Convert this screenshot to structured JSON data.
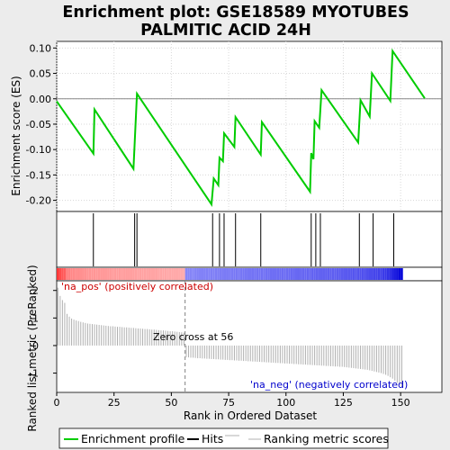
{
  "chart_data": {
    "type": "line",
    "title_lines": [
      "Enrichment plot: GSE18589 MYOTUBES",
      "PALMITIC ACID 24H"
    ],
    "ylabel_top": "Enrichment score (ES)",
    "ylabel_bottom": "Ranked list metric (PreRanked)",
    "xlabel": "Rank in Ordered Dataset",
    "es_yticks": [
      "0.10",
      "0.05",
      "0.00",
      "-0.05",
      "-0.10",
      "-0.15",
      "-0.20"
    ],
    "es_ytick_values": [
      0.1,
      0.05,
      0.0,
      -0.05,
      -0.1,
      -0.15,
      -0.2
    ],
    "metric_yticks": [
      "2",
      "1",
      "0",
      "-1"
    ],
    "metric_ytick_values": [
      2,
      1,
      0,
      -1
    ],
    "xticks": [
      "0",
      "25",
      "50",
      "75",
      "100",
      "125",
      "150"
    ],
    "xtick_values": [
      0,
      25,
      50,
      75,
      100,
      125,
      150
    ],
    "xlim": [
      0,
      168
    ],
    "es_ylim": [
      -0.222,
      0.113
    ],
    "metric_ylim": [
      -1.7,
      2.35
    ],
    "colors": {
      "es_line": "#00cc00",
      "hits": "#000000",
      "metric": "#b0b0b0",
      "pos_label": "#cc0000",
      "neg_label": "#0000cc",
      "zero_line": "#808080"
    },
    "es_curve": [
      [
        0,
        -0.005
      ],
      [
        16,
        -0.108
      ],
      [
        16.5,
        -0.021
      ],
      [
        33.5,
        -0.138
      ],
      [
        35,
        0.01
      ],
      [
        67.5,
        -0.208
      ],
      [
        68.5,
        -0.157
      ],
      [
        70.5,
        -0.17
      ],
      [
        71,
        -0.116
      ],
      [
        72.5,
        -0.123
      ],
      [
        73,
        -0.068
      ],
      [
        77.5,
        -0.095
      ],
      [
        78,
        -0.036
      ],
      [
        89,
        -0.11
      ],
      [
        89.5,
        -0.046
      ],
      [
        110.5,
        -0.183
      ],
      [
        111,
        -0.107
      ],
      [
        112,
        -0.119
      ],
      [
        112.5,
        -0.044
      ],
      [
        114.5,
        -0.057
      ],
      [
        115.5,
        0.017
      ],
      [
        131.5,
        -0.086
      ],
      [
        132.5,
        -0.003
      ],
      [
        136.5,
        -0.035
      ],
      [
        137.5,
        0.05
      ],
      [
        145.5,
        -0.004
      ],
      [
        146.5,
        0.094
      ],
      [
        160.5,
        0.001
      ]
    ],
    "hits": [
      16,
      34,
      35,
      68,
      71,
      73,
      78,
      89,
      111,
      113,
      115,
      132,
      138,
      147
    ],
    "metric": [
      2.1,
      1.8,
      1.65,
      1.55,
      1.15,
      1.05,
      0.98,
      0.94,
      0.91,
      0.89,
      0.86,
      0.84,
      0.82,
      0.8,
      0.79,
      0.78,
      0.77,
      0.76,
      0.75,
      0.74,
      0.73,
      0.72,
      0.71,
      0.7,
      0.7,
      0.69,
      0.68,
      0.68,
      0.67,
      0.66,
      0.66,
      0.65,
      0.64,
      0.64,
      0.63,
      0.62,
      0.62,
      0.61,
      0.6,
      0.6,
      0.59,
      0.58,
      0.58,
      0.57,
      0.56,
      0.55,
      0.55,
      0.54,
      0.53,
      0.52,
      0.52,
      0.51,
      0.5,
      0.49,
      0.48,
      0.47,
      -0.42,
      -0.43,
      -0.44,
      -0.44,
      -0.45,
      -0.46,
      -0.46,
      -0.47,
      -0.47,
      -0.48,
      -0.48,
      -0.49,
      -0.49,
      -0.5,
      -0.5,
      -0.51,
      -0.51,
      -0.52,
      -0.52,
      -0.53,
      -0.53,
      -0.54,
      -0.54,
      -0.55,
      -0.55,
      -0.56,
      -0.56,
      -0.57,
      -0.57,
      -0.58,
      -0.58,
      -0.59,
      -0.59,
      -0.6,
      -0.6,
      -0.61,
      -0.61,
      -0.62,
      -0.62,
      -0.63,
      -0.63,
      -0.64,
      -0.64,
      -0.65,
      -0.65,
      -0.66,
      -0.66,
      -0.67,
      -0.67,
      -0.68,
      -0.68,
      -0.69,
      -0.69,
      -0.7,
      -0.7,
      -0.71,
      -0.71,
      -0.72,
      -0.72,
      -0.73,
      -0.73,
      -0.74,
      -0.74,
      -0.75,
      -0.75,
      -0.76,
      -0.76,
      -0.77,
      -0.77,
      -0.78,
      -0.79,
      -0.8,
      -0.81,
      -0.82,
      -0.83,
      -0.84,
      -0.85,
      -0.86,
      -0.87,
      -0.88,
      -0.9,
      -0.92,
      -0.94,
      -0.96,
      -0.98,
      -1.0,
      -1.03,
      -1.06,
      -1.1,
      -1.15,
      -1.2,
      -1.27,
      -1.35,
      -1.43,
      -1.5
    ],
    "zero_cross_rank": 56,
    "annotations": {
      "pos": "'na_pos' (positively correlated)",
      "neg": "'na_neg' (negatively correlated)",
      "zero": "Zero cross at 56"
    },
    "legend": [
      "Enrichment profile",
      "Hits",
      "Ranking metric scores"
    ]
  }
}
